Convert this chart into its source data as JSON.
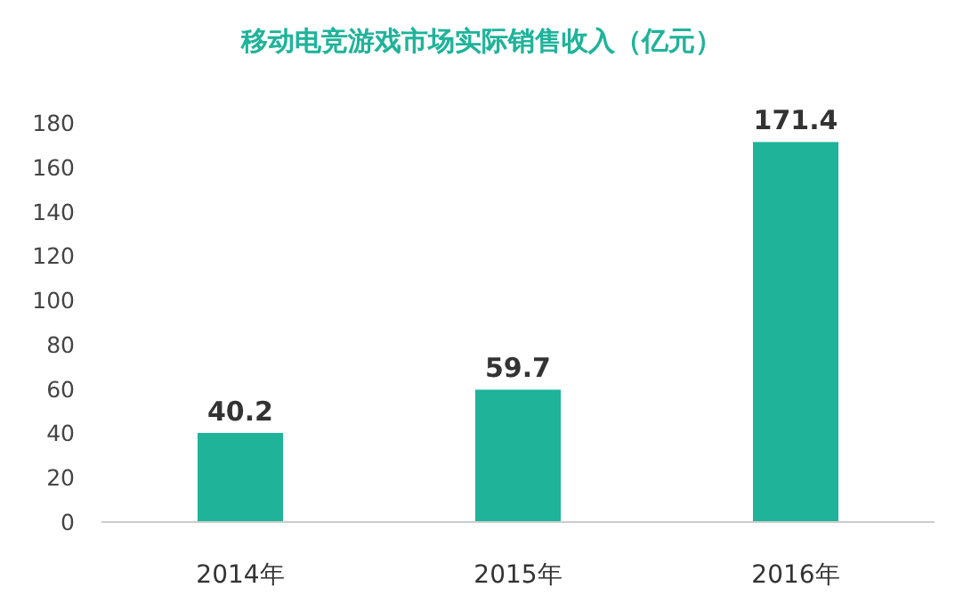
{
  "chart_data": {
    "type": "bar",
    "title": "移动电竞游戏市场实际销售收入（亿元）",
    "categories": [
      "2014年",
      "2015年",
      "2016年"
    ],
    "values": [
      40.2,
      59.7,
      171.4
    ],
    "color": "#1fb39a",
    "ylim": [
      0,
      180
    ],
    "yticks": [
      0,
      20,
      40,
      60,
      80,
      100,
      120,
      140,
      160,
      180
    ],
    "data_labels": true
  }
}
